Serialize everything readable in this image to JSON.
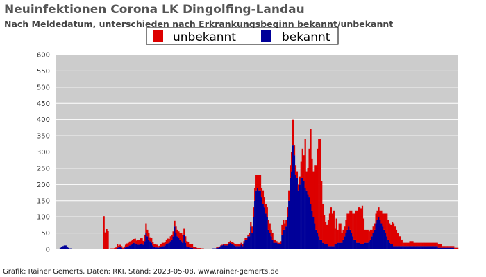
{
  "colors": {
    "unbekannt": "#dd0000",
    "bekannt": "#000099",
    "plot_background": "#cccccc",
    "grid": "#ffffff"
  },
  "credit": "Grafik: Rainer Gemerts, Daten: RKI, Stand: 2023-05-08, www.rainer-gemerts.de",
  "chart_data": {
    "type": "bar",
    "stacked": true,
    "title": "Neuinfektionen Corona LK Dingolfing-Landau",
    "subtitle": "Nach Meldedatum, unterschieden nach Erkrankungsbeginn bekannt/unbekannt",
    "legend": {
      "placement": "top-center",
      "entries": [
        "unbekannt",
        "bekannt"
      ]
    },
    "grid": true,
    "ylim": [
      0,
      600
    ],
    "yticks": [
      0,
      50,
      100,
      150,
      200,
      250,
      300,
      350,
      400,
      450,
      500,
      550,
      600
    ],
    "x_granularity": "weekly",
    "series": [
      {
        "name": "unbekannt",
        "values": [
          0,
          0,
          0,
          0,
          0,
          0,
          0,
          0,
          0,
          0,
          0,
          0,
          0,
          0,
          0,
          0,
          0,
          0,
          0,
          2,
          0,
          0,
          0,
          0,
          0,
          0,
          0,
          0,
          0,
          0,
          2,
          0,
          2,
          0,
          0,
          100,
          50,
          60,
          55,
          0,
          2,
          2,
          2,
          3,
          5,
          10,
          5,
          6,
          5,
          3,
          5,
          8,
          10,
          10,
          12,
          12,
          14,
          12,
          15,
          12,
          14,
          14,
          18,
          18,
          12,
          20,
          30,
          20,
          20,
          12,
          15,
          10,
          8,
          10,
          8,
          5,
          5,
          8,
          10,
          10,
          10,
          15,
          15,
          12,
          15,
          15,
          15,
          18,
          20,
          20,
          20,
          20,
          25,
          25,
          20,
          20,
          15,
          15,
          10,
          10,
          10,
          5,
          5,
          2,
          2,
          2,
          2,
          2,
          2,
          0,
          0,
          0,
          0,
          0,
          0,
          0,
          0,
          0,
          2,
          2,
          2,
          2,
          2,
          3,
          3,
          5,
          5,
          5,
          6,
          6,
          6,
          6,
          5,
          5,
          5,
          5,
          6,
          6,
          5,
          5,
          5,
          5,
          10,
          15,
          20,
          30,
          40,
          50,
          40,
          50,
          50,
          30,
          40,
          30,
          30,
          30,
          30,
          30,
          20,
          20,
          10,
          10,
          5,
          5,
          5,
          10,
          30,
          30,
          20,
          20,
          30,
          30,
          40,
          60,
          80,
          30,
          30,
          20,
          20,
          25,
          50,
          90,
          80,
          150,
          60,
          80,
          150,
          230,
          160,
          140,
          180,
          200,
          260,
          300,
          310,
          180,
          120,
          90,
          70,
          60,
          80,
          100,
          120,
          100,
          110,
          50,
          80,
          40,
          60,
          60,
          30,
          30,
          30,
          40,
          50,
          40,
          60,
          70,
          70,
          80,
          90,
          100,
          110,
          110,
          110,
          120,
          80,
          40,
          40,
          40,
          30,
          30,
          20,
          20,
          20,
          30,
          30,
          30,
          30,
          40,
          40,
          50,
          60,
          70,
          60,
          60,
          60,
          70,
          70,
          60,
          50,
          40,
          30,
          30,
          20,
          10,
          10,
          10,
          10,
          10,
          15,
          15,
          15,
          10,
          10,
          10,
          10,
          10,
          10,
          10,
          10,
          10,
          10,
          10,
          10,
          10,
          10,
          10,
          10,
          10,
          10,
          10,
          10,
          10,
          5,
          5,
          5,
          5,
          5,
          5,
          5,
          5,
          5,
          5,
          5,
          5
        ]
      },
      {
        "name": "bekannt",
        "values": [
          0,
          0,
          0,
          5,
          8,
          10,
          12,
          12,
          8,
          5,
          3,
          3,
          2,
          2,
          1,
          1,
          0,
          0,
          0,
          0,
          0,
          0,
          0,
          0,
          0,
          0,
          0,
          0,
          0,
          0,
          0,
          0,
          0,
          0,
          2,
          2,
          2,
          2,
          2,
          2,
          1,
          1,
          1,
          1,
          1,
          5,
          6,
          8,
          5,
          2,
          4,
          6,
          8,
          10,
          12,
          14,
          16,
          20,
          18,
          15,
          14,
          14,
          16,
          18,
          14,
          25,
          50,
          40,
          30,
          25,
          20,
          12,
          8,
          6,
          6,
          5,
          6,
          8,
          10,
          10,
          12,
          15,
          18,
          20,
          25,
          30,
          40,
          70,
          50,
          40,
          35,
          30,
          25,
          20,
          45,
          20,
          10,
          8,
          6,
          5,
          5,
          3,
          3,
          3,
          2,
          2,
          2,
          1,
          1,
          1,
          1,
          1,
          1,
          1,
          1,
          3,
          3,
          3,
          4,
          5,
          7,
          10,
          12,
          14,
          12,
          12,
          12,
          18,
          20,
          16,
          14,
          12,
          10,
          10,
          10,
          10,
          14,
          10,
          20,
          30,
          30,
          40,
          40,
          70,
          50,
          100,
          150,
          180,
          190,
          180,
          180,
          160,
          140,
          130,
          110,
          100,
          60,
          50,
          40,
          30,
          20,
          20,
          20,
          15,
          15,
          15,
          45,
          60,
          60,
          70,
          100,
          150,
          220,
          240,
          320,
          290,
          230,
          220,
          180,
          200,
          220,
          220,
          210,
          190,
          180,
          170,
          160,
          140,
          120,
          100,
          80,
          60,
          50,
          40,
          30,
          30,
          20,
          15,
          15,
          15,
          10,
          10,
          10,
          10,
          10,
          15,
          15,
          20,
          20,
          20,
          20,
          30,
          40,
          50,
          60,
          70,
          60,
          50,
          40,
          30,
          30,
          20,
          20,
          20,
          15,
          15,
          15,
          20,
          20,
          20,
          25,
          30,
          40,
          50,
          60,
          80,
          90,
          100,
          90,
          80,
          70,
          60,
          50,
          40,
          30,
          20,
          15,
          15,
          10,
          10,
          10,
          10,
          10,
          10,
          10,
          10,
          10,
          10,
          10,
          10,
          10,
          10,
          10,
          10,
          10,
          10,
          10,
          10,
          10,
          10,
          10,
          10,
          10,
          10,
          10,
          10,
          10,
          10,
          10,
          10,
          10,
          5,
          5,
          5,
          5,
          5,
          5,
          5,
          5,
          5,
          5,
          5,
          5
        ]
      }
    ]
  }
}
